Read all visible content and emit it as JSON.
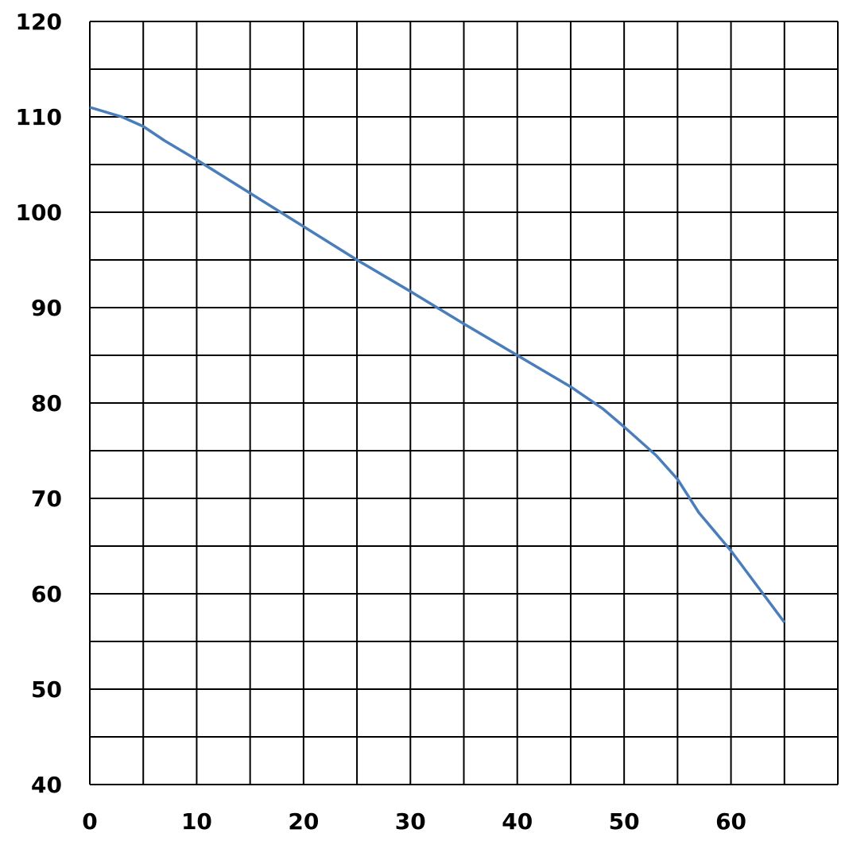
{
  "chart_data": {
    "type": "line",
    "title": "",
    "xlabel": "",
    "ylabel": "",
    "xlim": [
      0,
      70
    ],
    "ylim": [
      40,
      120
    ],
    "x_minor_step": 5,
    "y_minor_step": 5,
    "grid": true,
    "x_ticks": [
      0,
      10,
      20,
      30,
      40,
      50,
      60
    ],
    "y_ticks": [
      40,
      50,
      60,
      70,
      80,
      90,
      100,
      110,
      120
    ],
    "x_tick_labels": [
      "0",
      "10",
      "20",
      "30",
      "40",
      "50",
      "60"
    ],
    "y_tick_labels": [
      "40",
      "50",
      "60",
      "70",
      "80",
      "90",
      "100",
      "110",
      "120"
    ],
    "series": [
      {
        "color": "#4a7ebb",
        "x": [
          0,
          3,
          5,
          7,
          10,
          15,
          20,
          25,
          30,
          35,
          40,
          45,
          48,
          50,
          53,
          55,
          57,
          60,
          63,
          65
        ],
        "y": [
          111,
          110,
          109,
          107.5,
          105.5,
          102,
          98.5,
          95,
          91.7,
          88.3,
          85,
          81.7,
          79.4,
          77.5,
          74.5,
          72,
          68.5,
          64.5,
          60,
          57
        ]
      }
    ]
  }
}
